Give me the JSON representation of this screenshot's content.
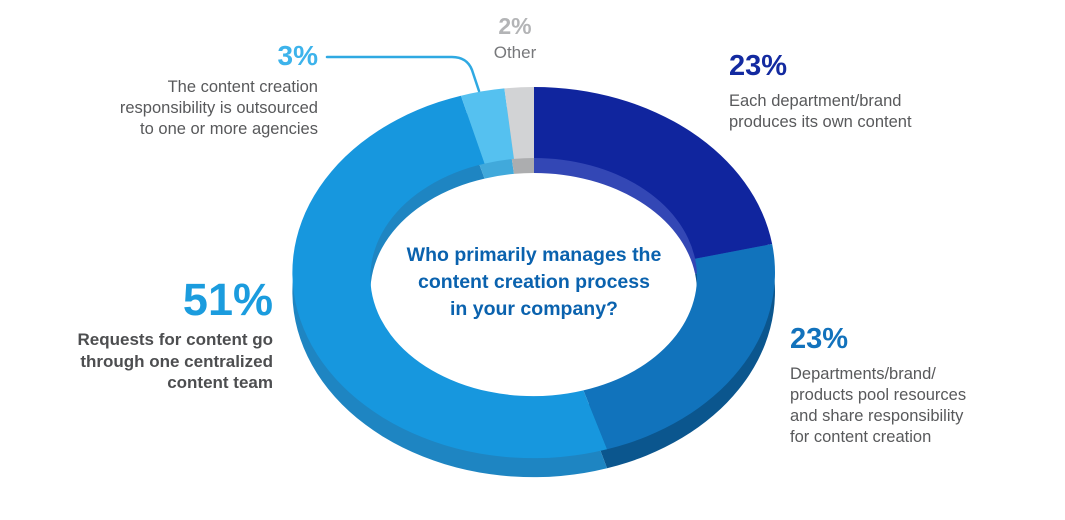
{
  "background_color": "#FFFFFF",
  "chart_data": {
    "type": "donut",
    "title": "Who primarily manages the content creation process in your company?",
    "center_title": {
      "lines": [
        "Who primarily manages the",
        "content creation process",
        "in your company?"
      ],
      "color": "#0A62AE"
    },
    "unit": "%",
    "values_total": 102,
    "legend_position": "around-chart",
    "segments": [
      {
        "id": "own-content",
        "pct": "23%",
        "value": 23,
        "color": "#10259E",
        "side_color": "#3347B5",
        "pct_color": "#132AA0",
        "label": "Each department/brand produces its own content",
        "label_lines": [
          "Each department/brand",
          "produces its own content"
        ]
      },
      {
        "id": "pooled-resources",
        "pct": "23%",
        "value": 23,
        "color": "#1173BC",
        "side_color": "#0B568E",
        "pct_color": "#1272BC",
        "label": "Departments/brand/products pool resources and share responsibility for content creation",
        "label_lines": [
          "Departments/brand/",
          "products pool resources",
          "and share responsibility",
          "for content creation"
        ]
      },
      {
        "id": "centralized-team",
        "pct": "51%",
        "value": 51,
        "color": "#1797DE",
        "side_color": "#1E85C2",
        "pct_color": "#1B9CDE",
        "label": "Requests for content go through one centralized content team",
        "label_lines": [
          "Requests for content go",
          "through one centralized",
          "content team"
        ]
      },
      {
        "id": "outsourced",
        "pct": "3%",
        "value": 3,
        "color": "#55C1F0",
        "side_color": "#41A9DB",
        "pct_color": "#3DB3EB",
        "label": "The content creation responsibility is outsourced to one or more agencies",
        "label_lines": [
          "The content creation",
          "responsibility is outsourced",
          "to one or more agencies"
        ]
      },
      {
        "id": "other",
        "pct": "2%",
        "value": 2,
        "color": "#D2D3D5",
        "side_color": "#ACADAF",
        "pct_color": "#B3B4B6",
        "label": "Other",
        "label_lines": [
          "Other"
        ]
      }
    ],
    "callout": {
      "for": "outsourced",
      "color": "#2FA9E2"
    }
  }
}
